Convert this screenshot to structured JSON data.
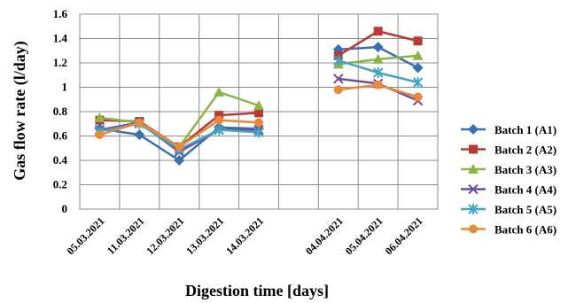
{
  "chart_data": {
    "type": "line",
    "xlabel": "Digestion time [days]",
    "ylabel": "Gas flow rate (l/day)",
    "ylim": [
      0,
      1.6
    ],
    "yticks": [
      "0",
      "0.2",
      "0.4",
      "0.6",
      "0.8",
      "1",
      "1.2",
      "1.4",
      "1.6"
    ],
    "categories": [
      "05.03.2021",
      "11.03.2021",
      "12.03.2021",
      "13.03.2021",
      "14.03.2021",
      "",
      "04.04.2021",
      "05.04.2021",
      "06.04.2021"
    ],
    "grid": true,
    "legend_position": "right",
    "series": [
      {
        "name": "Batch 1 (A1)",
        "color": "#3a6fb0",
        "marker": "diamond",
        "values": [
          0.66,
          0.61,
          0.4,
          0.67,
          0.66,
          null,
          1.31,
          1.33,
          1.16
        ]
      },
      {
        "name": "Batch 2 (A2)",
        "color": "#b83a36",
        "marker": "square",
        "values": [
          0.73,
          0.72,
          0.51,
          0.77,
          0.79,
          null,
          1.26,
          1.46,
          1.38
        ]
      },
      {
        "name": "Batch 3 (A3)",
        "color": "#8db345",
        "marker": "triangle",
        "values": [
          0.75,
          0.71,
          0.51,
          0.96,
          0.85,
          null,
          1.19,
          1.23,
          1.26
        ]
      },
      {
        "name": "Batch 4 (A4)",
        "color": "#6f4e9b",
        "marker": "x",
        "values": [
          0.65,
          0.71,
          0.47,
          0.65,
          0.65,
          null,
          1.07,
          1.03,
          0.89
        ]
      },
      {
        "name": "Batch 5 (A5)",
        "color": "#3fa6c4",
        "marker": "star",
        "values": [
          0.64,
          0.7,
          0.49,
          0.65,
          0.63,
          null,
          1.22,
          1.12,
          1.04
        ]
      },
      {
        "name": "Batch 6 (A6)",
        "color": "#e8893a",
        "marker": "circle",
        "values": [
          0.61,
          0.71,
          0.51,
          0.73,
          0.71,
          null,
          0.98,
          1.02,
          0.92
        ]
      }
    ]
  }
}
